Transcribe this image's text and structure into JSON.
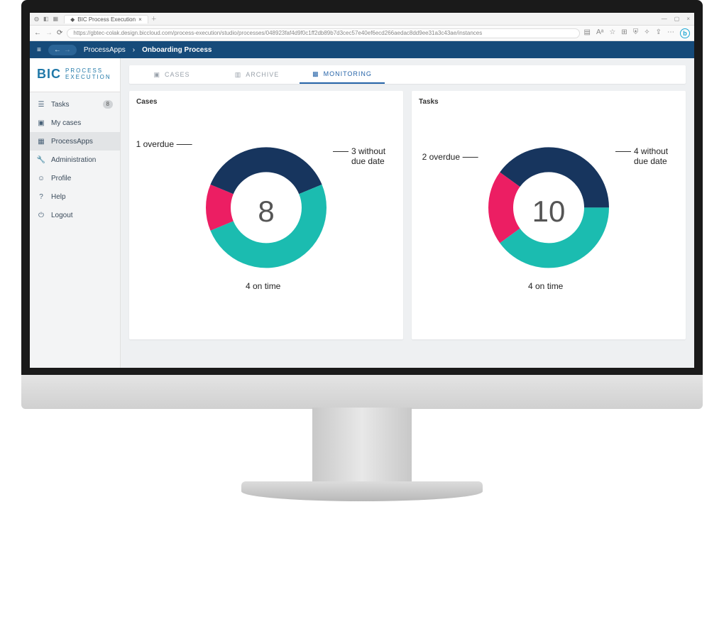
{
  "browser": {
    "tab_title": "BIC Process Execution",
    "url": "https://gbtec-colak.design.biccloud.com/process-execution/studio/processes/048923faf4d9f0c1ff2db89b7d3cec57e40ef6ecd266aedac8dd9ee31a3c43ae/instances"
  },
  "header": {
    "breadcrumb_root": "ProcessApps",
    "breadcrumb_current": "Onboarding Process"
  },
  "logo": {
    "main": "BIC",
    "line1": "PROCESS",
    "line2": "EXECUTION"
  },
  "sidebar": {
    "items": [
      {
        "label": "Tasks",
        "badge": "8"
      },
      {
        "label": "My cases"
      },
      {
        "label": "ProcessApps"
      },
      {
        "label": "Administration"
      },
      {
        "label": "Profile"
      },
      {
        "label": "Help"
      },
      {
        "label": "Logout"
      }
    ]
  },
  "tabs": {
    "cases": "CASES",
    "archive": "ARCHIVE",
    "monitoring": "MONITORING"
  },
  "colors": {
    "overdue": "#ec1e63",
    "no_due": "#17355e",
    "on_time": "#1bbcb0",
    "accent": "#2563a8",
    "header_bg": "#164b7a"
  },
  "charts": {
    "cases": {
      "title": "Cases",
      "total": "8",
      "segments": [
        {
          "key": "overdue",
          "value": 1,
          "label": "1 overdue"
        },
        {
          "key": "no_due",
          "value": 3,
          "label": "3 without due date"
        },
        {
          "key": "on_time",
          "value": 4,
          "label": "4 on time"
        }
      ],
      "outer_r": 85,
      "inner_r": 50,
      "start_angle_deg": -112.5
    },
    "tasks": {
      "title": "Tasks",
      "total": "10",
      "segments": [
        {
          "key": "overdue",
          "value": 2,
          "label": "2 overdue"
        },
        {
          "key": "no_due",
          "value": 4,
          "label": "4 without due date"
        },
        {
          "key": "on_time",
          "value": 4,
          "label": "4 on time"
        }
      ],
      "outer_r": 85,
      "inner_r": 50,
      "start_angle_deg": -126
    }
  }
}
